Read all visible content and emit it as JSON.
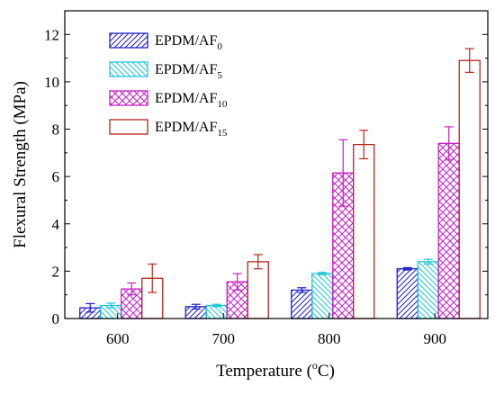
{
  "chart_data": {
    "type": "bar",
    "title": "",
    "xlabel": "Temperature (oC)",
    "xlabel_main": "Temperature (",
    "xlabel_sup": "o",
    "xlabel_end": "C)",
    "ylabel": "Flexural Strength (MPa)",
    "ylim": [
      0,
      13
    ],
    "y_ticks": [
      "0",
      "2",
      "4",
      "6",
      "8",
      "10",
      "12"
    ],
    "categories": [
      "600",
      "700",
      "800",
      "900"
    ],
    "legend_position": "top-left",
    "series": [
      {
        "name": "EPDM/AF0",
        "name_main": "EPDM/AF",
        "name_sub": "0",
        "color": "#1f1fcc",
        "pattern": "diagonal",
        "values": [
          0.45,
          0.5,
          1.2,
          2.1
        ],
        "errors": [
          0.18,
          0.1,
          0.1,
          0.05
        ]
      },
      {
        "name": "EPDM/AF5",
        "name_main": "EPDM/AF",
        "name_sub": "5",
        "color": "#1fc6d6",
        "pattern": "back-diagonal",
        "values": [
          0.55,
          0.55,
          1.9,
          2.4
        ],
        "errors": [
          0.1,
          0.05,
          0.05,
          0.1
        ]
      },
      {
        "name": "EPDM/AF10",
        "name_main": "EPDM/AF",
        "name_sub": "10",
        "color": "#c41fc4",
        "pattern": "cross",
        "values": [
          1.25,
          1.55,
          6.15,
          7.4
        ],
        "errors": [
          0.25,
          0.35,
          1.4,
          0.7
        ]
      },
      {
        "name": "EPDM/AF15",
        "name_main": "EPDM/AF",
        "name_sub": "15",
        "color": "#b5251a",
        "pattern": "none",
        "values": [
          1.7,
          2.4,
          7.35,
          10.9
        ],
        "errors": [
          0.6,
          0.3,
          0.6,
          0.5
        ]
      }
    ]
  }
}
